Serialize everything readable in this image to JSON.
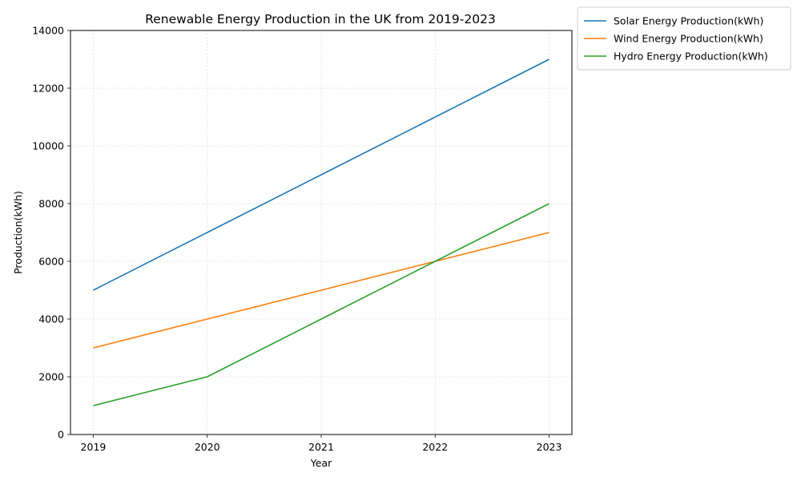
{
  "chart_data": {
    "type": "line",
    "title": "Renewable Energy Production in the UK from 2019-2023",
    "xlabel": "Year",
    "ylabel": "Production(kWh)",
    "x": [
      2019,
      2020,
      2021,
      2022,
      2023
    ],
    "x_tick_labels": [
      "2019",
      "2020",
      "2021",
      "2022",
      "2023"
    ],
    "y_ticks": [
      0,
      2000,
      4000,
      6000,
      8000,
      10000,
      12000,
      14000
    ],
    "y_tick_labels": [
      "0",
      "2000",
      "4000",
      "6000",
      "8000",
      "10000",
      "12000",
      "14000"
    ],
    "xlim": [
      2018.8,
      2023.2
    ],
    "ylim": [
      0,
      14000
    ],
    "grid": true,
    "legend_position": "outside-top-right",
    "series": [
      {
        "name": "Solar Energy Production(kWh)",
        "color": "#1f77b4",
        "values": [
          5000,
          7000,
          9000,
          11000,
          13000
        ]
      },
      {
        "name": "Wind Energy Production(kWh)",
        "color": "#ff7f0e",
        "values": [
          3000,
          4000,
          5000,
          6000,
          7000
        ]
      },
      {
        "name": "Hydro Energy Production(kWh)",
        "color": "#2ca02c",
        "values": [
          1000,
          2000,
          4000,
          6000,
          8000
        ]
      }
    ]
  }
}
